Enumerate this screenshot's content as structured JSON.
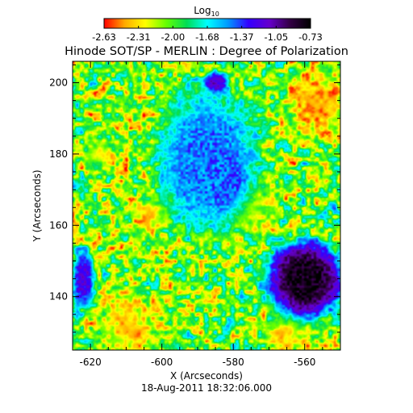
{
  "chart_data": {
    "type": "heatmap",
    "title": "Hinode SOT/SP - MERLIN : Degree of Polarization",
    "xlabel": "X (Arcseconds)",
    "ylabel": "Y (Arcseconds)",
    "footer": "18-Aug-2011 18:32:06.000",
    "xlim": [
      -625,
      -550
    ],
    "ylim": [
      125,
      206
    ],
    "x_ticks": [
      -620,
      -600,
      -580,
      -560
    ],
    "y_ticks": [
      140,
      160,
      180,
      200
    ],
    "grid": false,
    "colorbar": {
      "title_base": "Log",
      "title_sub": "10",
      "range": [
        -2.63,
        -0.73
      ],
      "tick_labels": [
        "-2.63",
        "-2.31",
        "-2.00",
        "-1.68",
        "-1.37",
        "-1.05",
        "-0.73"
      ],
      "colormap": "rainbow (red-yellow-green-cyan-blue-purple-black)",
      "stops": [
        "#ff0000",
        "#ffaa00",
        "#ffff00",
        "#66ff00",
        "#00dd55",
        "#00ffff",
        "#0099ff",
        "#3300ff",
        "#6600cc",
        "#330044",
        "#000000"
      ]
    },
    "features": [
      {
        "x": -560,
        "y": 145,
        "rx": 10.5,
        "ry": 11,
        "peak": -0.78
      },
      {
        "x": -583,
        "y": 173,
        "rx": 5.5,
        "ry": 7,
        "peak": -0.85
      },
      {
        "x": -588,
        "y": 181,
        "rx": 4,
        "ry": 4,
        "peak": -1.0
      },
      {
        "x": -585,
        "y": 200,
        "rx": 3.5,
        "ry": 3,
        "peak": -1.05
      },
      {
        "x": -622,
        "y": 145,
        "rx": 3,
        "ry": 8,
        "peak": -1.2
      },
      {
        "x": -587,
        "y": 178,
        "rx": 14,
        "ry": 20,
        "peak": -1.45
      }
    ],
    "quiet_regions": [
      {
        "x": -556,
        "y": 195,
        "r": 9,
        "level": -2.6
      },
      {
        "x": -610,
        "y": 132,
        "r": 8,
        "level": -2.55
      },
      {
        "x": -565,
        "y": 130,
        "r": 6,
        "level": -2.5
      },
      {
        "x": -603,
        "y": 163,
        "r": 5,
        "level": -2.45
      },
      {
        "x": -618,
        "y": 180,
        "r": 4,
        "level": -2.35
      },
      {
        "x": -575,
        "y": 165,
        "r": 6,
        "level": -2.4
      }
    ]
  }
}
